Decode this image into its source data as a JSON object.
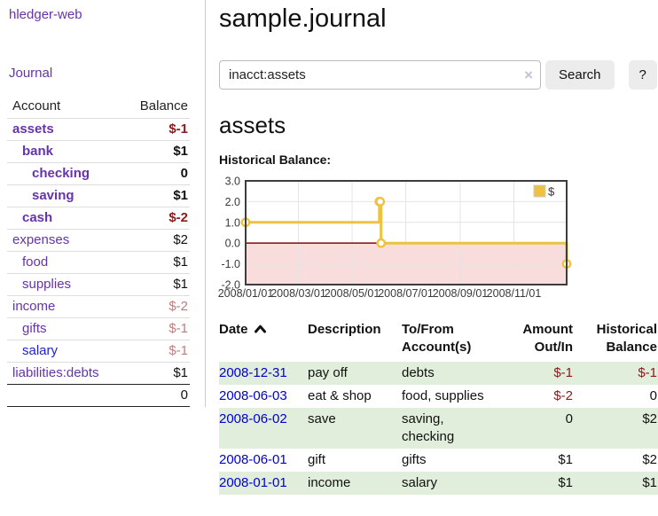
{
  "app": {
    "title": "hledger-web"
  },
  "sidebar": {
    "journal_link": "Journal",
    "accounts_table": {
      "account_header": "Account",
      "balance_header": "Balance",
      "rows": [
        {
          "name": "assets",
          "balance": "$-1",
          "level": 0,
          "in_account": true,
          "balance_tone": "negative",
          "link_tone": "purple"
        },
        {
          "name": "bank",
          "balance": "$1",
          "level": 1,
          "in_account": true,
          "balance_tone": "normal",
          "link_tone": "purple"
        },
        {
          "name": "checking",
          "balance": "0",
          "level": 2,
          "in_account": true,
          "balance_tone": "normal",
          "link_tone": "purple"
        },
        {
          "name": "saving",
          "balance": "$1",
          "level": 2,
          "in_account": true,
          "balance_tone": "normal",
          "link_tone": "purple"
        },
        {
          "name": "cash",
          "balance": "$-2",
          "level": 1,
          "in_account": true,
          "balance_tone": "negative",
          "link_tone": "purple"
        },
        {
          "name": "expenses",
          "balance": "$2",
          "level": 0,
          "in_account": false,
          "balance_tone": "normal",
          "link_tone": "purple"
        },
        {
          "name": "food",
          "balance": "$1",
          "level": 1,
          "in_account": false,
          "balance_tone": "normal",
          "link_tone": "purple"
        },
        {
          "name": "supplies",
          "balance": "$1",
          "level": 1,
          "in_account": false,
          "balance_tone": "normal",
          "link_tone": "purple"
        },
        {
          "name": "income",
          "balance": "$-2",
          "level": 0,
          "in_account": false,
          "balance_tone": "negative-soft",
          "link_tone": "purple"
        },
        {
          "name": "gifts",
          "balance": "$-1",
          "level": 1,
          "in_account": false,
          "balance_tone": "negative-soft",
          "link_tone": "purple"
        },
        {
          "name": "salary",
          "balance": "$-1",
          "level": 1,
          "in_account": false,
          "balance_tone": "negative-soft",
          "link_tone": "blue"
        },
        {
          "name": "liabilities:debts",
          "balance": "$1",
          "level": 0,
          "in_account": false,
          "balance_tone": "normal",
          "link_tone": "purple"
        }
      ],
      "total": "0"
    }
  },
  "header": {
    "title": "sample.journal"
  },
  "search": {
    "value": "inacct:assets",
    "clear_icon": "×",
    "search_button": "Search",
    "help_button": "?"
  },
  "main": {
    "account_heading": "assets",
    "chart_label": "Historical Balance:"
  },
  "register": {
    "headers": {
      "date": "Date",
      "description": "Description",
      "account_line1": "To/From",
      "account_line2": "Account(s)",
      "amount_line1": "Amount",
      "amount_line2": "Out/In",
      "balance_line1": "Historical",
      "balance_line2": "Balance"
    },
    "rows": [
      {
        "date": "2008-12-31",
        "description": "pay off",
        "accounts": "debts",
        "amount": "$-1",
        "balance": "$-1",
        "shaded": true
      },
      {
        "date": "2008-06-03",
        "description": "eat & shop",
        "accounts": "food, supplies",
        "amount": "$-2",
        "balance": "0",
        "shaded": false
      },
      {
        "date": "2008-06-02",
        "description": "save",
        "accounts": "saving, checking",
        "amount": "0",
        "balance": "$2",
        "shaded": true
      },
      {
        "date": "2008-06-01",
        "description": "gift",
        "accounts": "gifts",
        "amount": "$1",
        "balance": "$2",
        "shaded": false
      },
      {
        "date": "2008-01-01",
        "description": "income",
        "accounts": "salary",
        "amount": "$1",
        "balance": "$1",
        "shaded": true
      }
    ]
  },
  "chart_data": {
    "type": "line",
    "style": "step",
    "title": "Historical Balance:",
    "series": [
      {
        "name": "$",
        "color": "#edc240",
        "points": [
          {
            "date": "2008-01-01",
            "value": 1
          },
          {
            "date": "2008-06-01",
            "value": 2
          },
          {
            "date": "2008-06-02",
            "value": 2
          },
          {
            "date": "2008-06-03",
            "value": 0
          },
          {
            "date": "2008-12-31",
            "value": -1
          }
        ]
      }
    ],
    "xlim": [
      "2008-01-01",
      "2008-12-31"
    ],
    "ylim": [
      -2,
      3
    ],
    "yticks": [
      3,
      2,
      1,
      0,
      -1,
      -2
    ],
    "ytick_labels": [
      "3.0",
      "2.0",
      "1.0",
      "0.0",
      "-1.0",
      "-2.0"
    ],
    "xticks": [
      "2008/01/01",
      "2008/03/01",
      "2008/05/01",
      "2008/07/01",
      "2008/09/01",
      "2008/11/01"
    ],
    "legend_position": "top-right",
    "grid": true,
    "gridline_color": "#e4e4e4",
    "border_color": "#3d3d3d",
    "zero_line_color": "#8b1a1a",
    "negative_region_fill": "#f9dcdc"
  },
  "colors": {
    "link_purple": "#6633aa",
    "link_blue": "#2222cc",
    "date_link_blue": "#0000cc",
    "negative_strong": "#8b1a1a",
    "negative_soft": "#c17d7d",
    "row_shade_green": "#e1eedb",
    "series_gold": "#edc240"
  }
}
